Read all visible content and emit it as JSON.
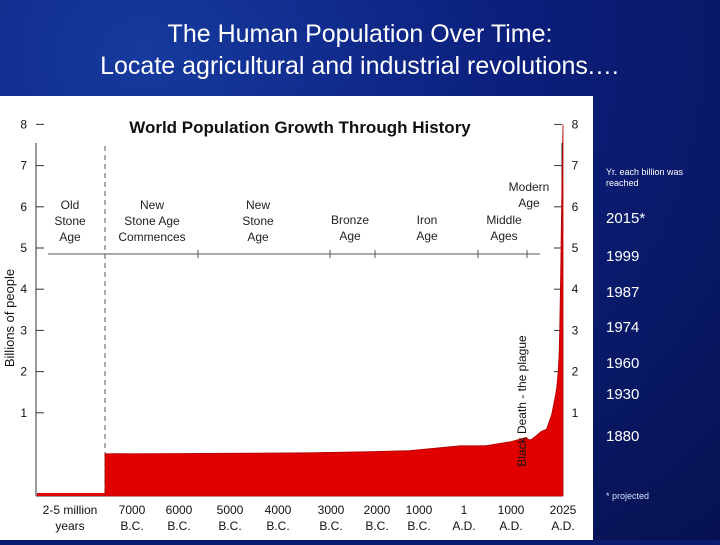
{
  "slide_title_line1": "The Human Population Over Time:",
  "slide_title_line2": "Locate agricultural and industrial revolutions.…",
  "side_note": "Yr. each billion was reached",
  "milestones": [
    "2015*",
    "1999",
    "1987",
    "1974",
    "1960",
    "1930",
    "1880"
  ],
  "footnote": "* projected",
  "chart_data": {
    "type": "area",
    "title": "World Population Growth Through History",
    "ylabel": "Billions of people",
    "ylim": [
      0,
      8
    ],
    "y_ticks": [
      "1",
      "2",
      "3",
      "4",
      "5",
      "6",
      "7",
      "8"
    ],
    "x_ticks": [
      {
        "top": "2-5 million",
        "bottom": "years"
      },
      {
        "top": "7000",
        "bottom": "B.C."
      },
      {
        "top": "6000",
        "bottom": "B.C."
      },
      {
        "top": "5000",
        "bottom": "B.C."
      },
      {
        "top": "4000",
        "bottom": "B.C."
      },
      {
        "top": "3000",
        "bottom": "B.C."
      },
      {
        "top": "2000",
        "bottom": "B.C."
      },
      {
        "top": "1000",
        "bottom": "B.C."
      },
      {
        "top": "1",
        "bottom": "A.D."
      },
      {
        "top": "1000",
        "bottom": "A.D."
      },
      {
        "top": "2025",
        "bottom": "A.D."
      }
    ],
    "eras": [
      {
        "lines": [
          "Old",
          "Stone",
          "Age"
        ]
      },
      {
        "lines": [
          "New",
          "Stone Age",
          "Commences"
        ]
      },
      {
        "lines": [
          "New",
          "Stone",
          "Age"
        ]
      },
      {
        "lines": [
          "Bronze",
          "Age"
        ]
      },
      {
        "lines": [
          "Iron",
          "Age"
        ]
      },
      {
        "lines": [
          "Middle",
          "Ages"
        ]
      },
      {
        "lines": [
          "Modern",
          "Age"
        ]
      }
    ],
    "annotation": "Black Death - the plague",
    "series": [
      {
        "x": [
          -7000,
          -6000,
          -5000,
          -4000,
          -3000,
          -2000,
          -1000,
          1,
          500,
          1000,
          1300,
          1350,
          1400,
          1500,
          1600,
          1700,
          1800,
          1850,
          1900,
          1930,
          1950,
          1960,
          1970,
          1980,
          1990,
          2000,
          2010,
          2025
        ],
        "values": [
          0.005,
          0.01,
          0.015,
          0.02,
          0.03,
          0.05,
          0.08,
          0.2,
          0.2,
          0.3,
          0.4,
          0.35,
          0.35,
          0.45,
          0.55,
          0.6,
          0.95,
          1.25,
          1.6,
          2.0,
          2.5,
          3.0,
          3.7,
          4.4,
          5.3,
          6.1,
          6.9,
          8.0
        ]
      }
    ]
  }
}
